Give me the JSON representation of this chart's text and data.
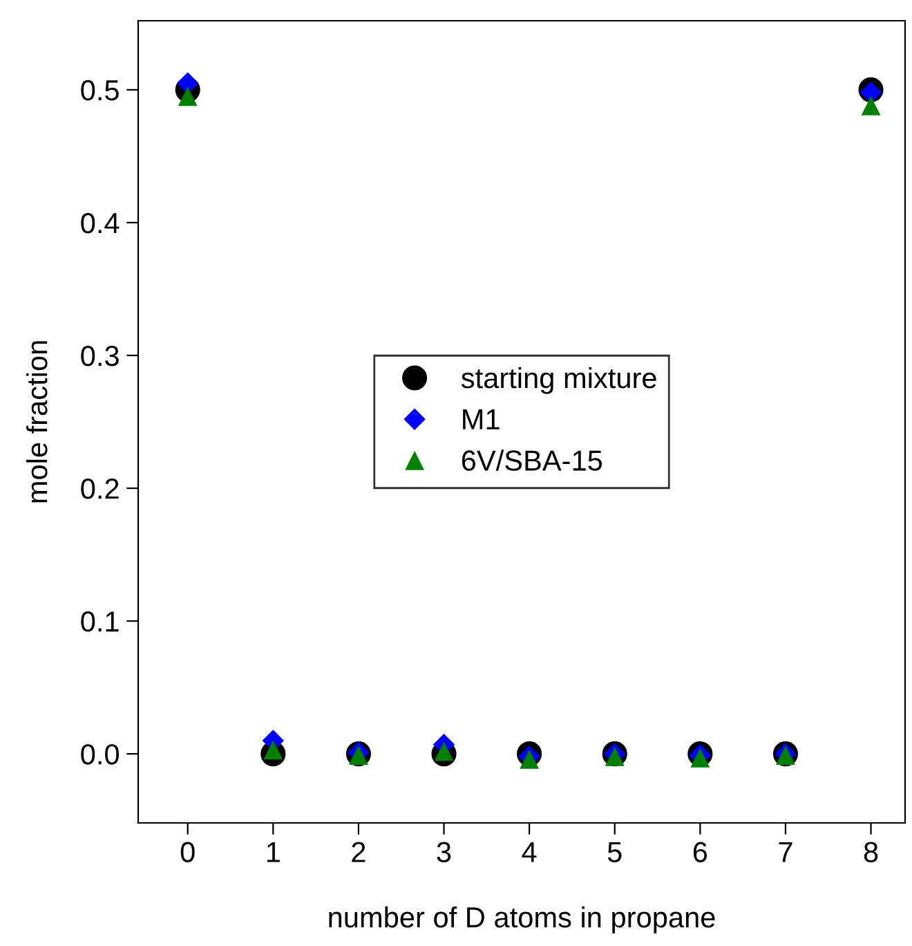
{
  "chart_data": {
    "type": "scatter",
    "xlabel": "number of D atoms in propane",
    "ylabel": "mole fraction",
    "x": [
      0,
      1,
      2,
      3,
      4,
      5,
      6,
      7,
      8
    ],
    "xlim": [
      -0.58,
      8.4
    ],
    "ylim": [
      -0.052,
      0.552
    ],
    "xticks": [
      0,
      1,
      2,
      3,
      4,
      5,
      6,
      7,
      8
    ],
    "yticks": [
      {
        "value": 0,
        "label": "0.0"
      },
      0.1,
      0.2,
      0.3,
      0.4,
      0.5
    ],
    "grid": false,
    "legend": "center",
    "series": [
      {
        "name": "starting mixture",
        "color": "#000000",
        "marker": "circle",
        "values": [
          0.5,
          0.0,
          0.0,
          0.0,
          0.0,
          0.0,
          0.0,
          0.0,
          0.5
        ]
      },
      {
        "name": "M1",
        "color": "#0000ff",
        "marker": "diamond",
        "values": [
          0.505,
          0.01,
          0.001,
          0.007,
          -0.002,
          0.0,
          -0.001,
          0.0,
          0.498
        ]
      },
      {
        "name": "6V/SBA-15",
        "color": "#008000",
        "marker": "triangle",
        "values": [
          0.495,
          0.003,
          -0.001,
          0.002,
          -0.004,
          -0.002,
          -0.003,
          -0.001,
          0.488
        ]
      }
    ]
  }
}
